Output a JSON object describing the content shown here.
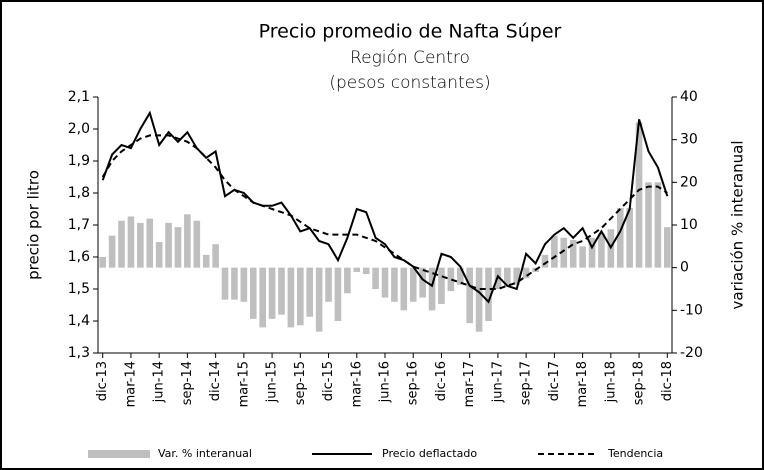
{
  "chart_data": {
    "type": "combo",
    "title": "Precio promedio de Nafta Súper",
    "subtitle": [
      "Región Centro",
      "(pesos constantes)"
    ],
    "y_label": "precio por litro",
    "y2_label": "variación % interanual",
    "categories": [
      "dic-13",
      null,
      null,
      "mar-14",
      null,
      null,
      "jun-14",
      null,
      null,
      "sep-14",
      null,
      null,
      "dic-14",
      null,
      null,
      "mar-15",
      null,
      null,
      "jun-15",
      null,
      null,
      "sep-15",
      null,
      null,
      "dic-15",
      null,
      null,
      "mar-16",
      null,
      null,
      "jun-16",
      null,
      null,
      "sep-16",
      null,
      null,
      "dic-16",
      null,
      null,
      "mar-17",
      null,
      null,
      "jun-17",
      null,
      null,
      "sep-17",
      null,
      null,
      "dic-17",
      null,
      null,
      "mar-18",
      null,
      null,
      "jun-18",
      null,
      null,
      "sep-18",
      null,
      null,
      "dic-18"
    ],
    "ylim": [
      1.3,
      2.1
    ],
    "yticks": [
      {
        "value": 2.1,
        "label": "2,1"
      },
      {
        "value": 2.0,
        "label": "2,0"
      },
      {
        "value": 1.9,
        "label": "1,9"
      },
      {
        "value": 1.8,
        "label": "1,8"
      },
      {
        "value": 1.7,
        "label": "1,7"
      },
      {
        "value": 1.6,
        "label": "1,6"
      },
      {
        "value": 1.5,
        "label": "1,5"
      },
      {
        "value": 1.4,
        "label": "1,4"
      },
      {
        "value": 1.3,
        "label": "1,3"
      }
    ],
    "y2lim": [
      -20,
      40
    ],
    "y2ticks": [
      40,
      30,
      20,
      10,
      0,
      -10,
      -20
    ],
    "legend": "bottom",
    "series": [
      {
        "name": "Var. % interanual",
        "type": "bar",
        "axis": "y2",
        "color": "#bfbfbf",
        "values": [
          2.5,
          7.5,
          11,
          12,
          10.5,
          11.5,
          6,
          10.5,
          9.5,
          12.5,
          11,
          3,
          5.5,
          -7.5,
          -7.5,
          -8,
          -12,
          -14,
          -12,
          -11,
          -14,
          -13.5,
          -11.5,
          -15,
          -8,
          -12.5,
          -6,
          -1,
          -1.5,
          -5,
          -7,
          -8,
          -10,
          -8,
          -7,
          -10,
          -8.5,
          -5.5,
          -4,
          -13,
          -15,
          -12.5,
          -5,
          -4.5,
          -4,
          -2.5,
          -1,
          3,
          7.5,
          7,
          6.5,
          5,
          7,
          8,
          9,
          14,
          14,
          34,
          20,
          20,
          9.5
        ]
      },
      {
        "name": "Precio deflactado",
        "type": "line",
        "color": "#000000",
        "dashed": false,
        "values": [
          1.84,
          1.92,
          1.95,
          1.94,
          2.0,
          2.05,
          1.95,
          1.99,
          1.96,
          1.99,
          1.94,
          1.91,
          1.93,
          1.79,
          1.81,
          1.8,
          1.77,
          1.76,
          1.76,
          1.77,
          1.73,
          1.68,
          1.69,
          1.65,
          1.64,
          1.59,
          1.66,
          1.75,
          1.74,
          1.66,
          1.64,
          1.6,
          1.59,
          1.57,
          1.53,
          1.51,
          1.61,
          1.6,
          1.57,
          1.51,
          1.49,
          1.46,
          1.54,
          1.51,
          1.5,
          1.61,
          1.58,
          1.64,
          1.67,
          1.69,
          1.66,
          1.69,
          1.63,
          1.68,
          1.63,
          1.68,
          1.75,
          2.03,
          1.93,
          1.88,
          1.79
        ]
      },
      {
        "name": "Tendencia",
        "type": "line",
        "color": "#000000",
        "dashed": true,
        "values": [
          1.85,
          1.9,
          1.93,
          1.95,
          1.97,
          1.98,
          1.98,
          1.98,
          1.97,
          1.96,
          1.94,
          1.91,
          1.88,
          1.84,
          1.81,
          1.79,
          1.77,
          1.76,
          1.75,
          1.74,
          1.73,
          1.71,
          1.69,
          1.68,
          1.67,
          1.67,
          1.67,
          1.67,
          1.66,
          1.65,
          1.63,
          1.61,
          1.59,
          1.57,
          1.56,
          1.55,
          1.54,
          1.53,
          1.52,
          1.51,
          1.5,
          1.5,
          1.5,
          1.51,
          1.52,
          1.54,
          1.56,
          1.58,
          1.6,
          1.62,
          1.64,
          1.65,
          1.67,
          1.69,
          1.72,
          1.75,
          1.78,
          1.81,
          1.82,
          1.82,
          1.8
        ]
      }
    ]
  }
}
